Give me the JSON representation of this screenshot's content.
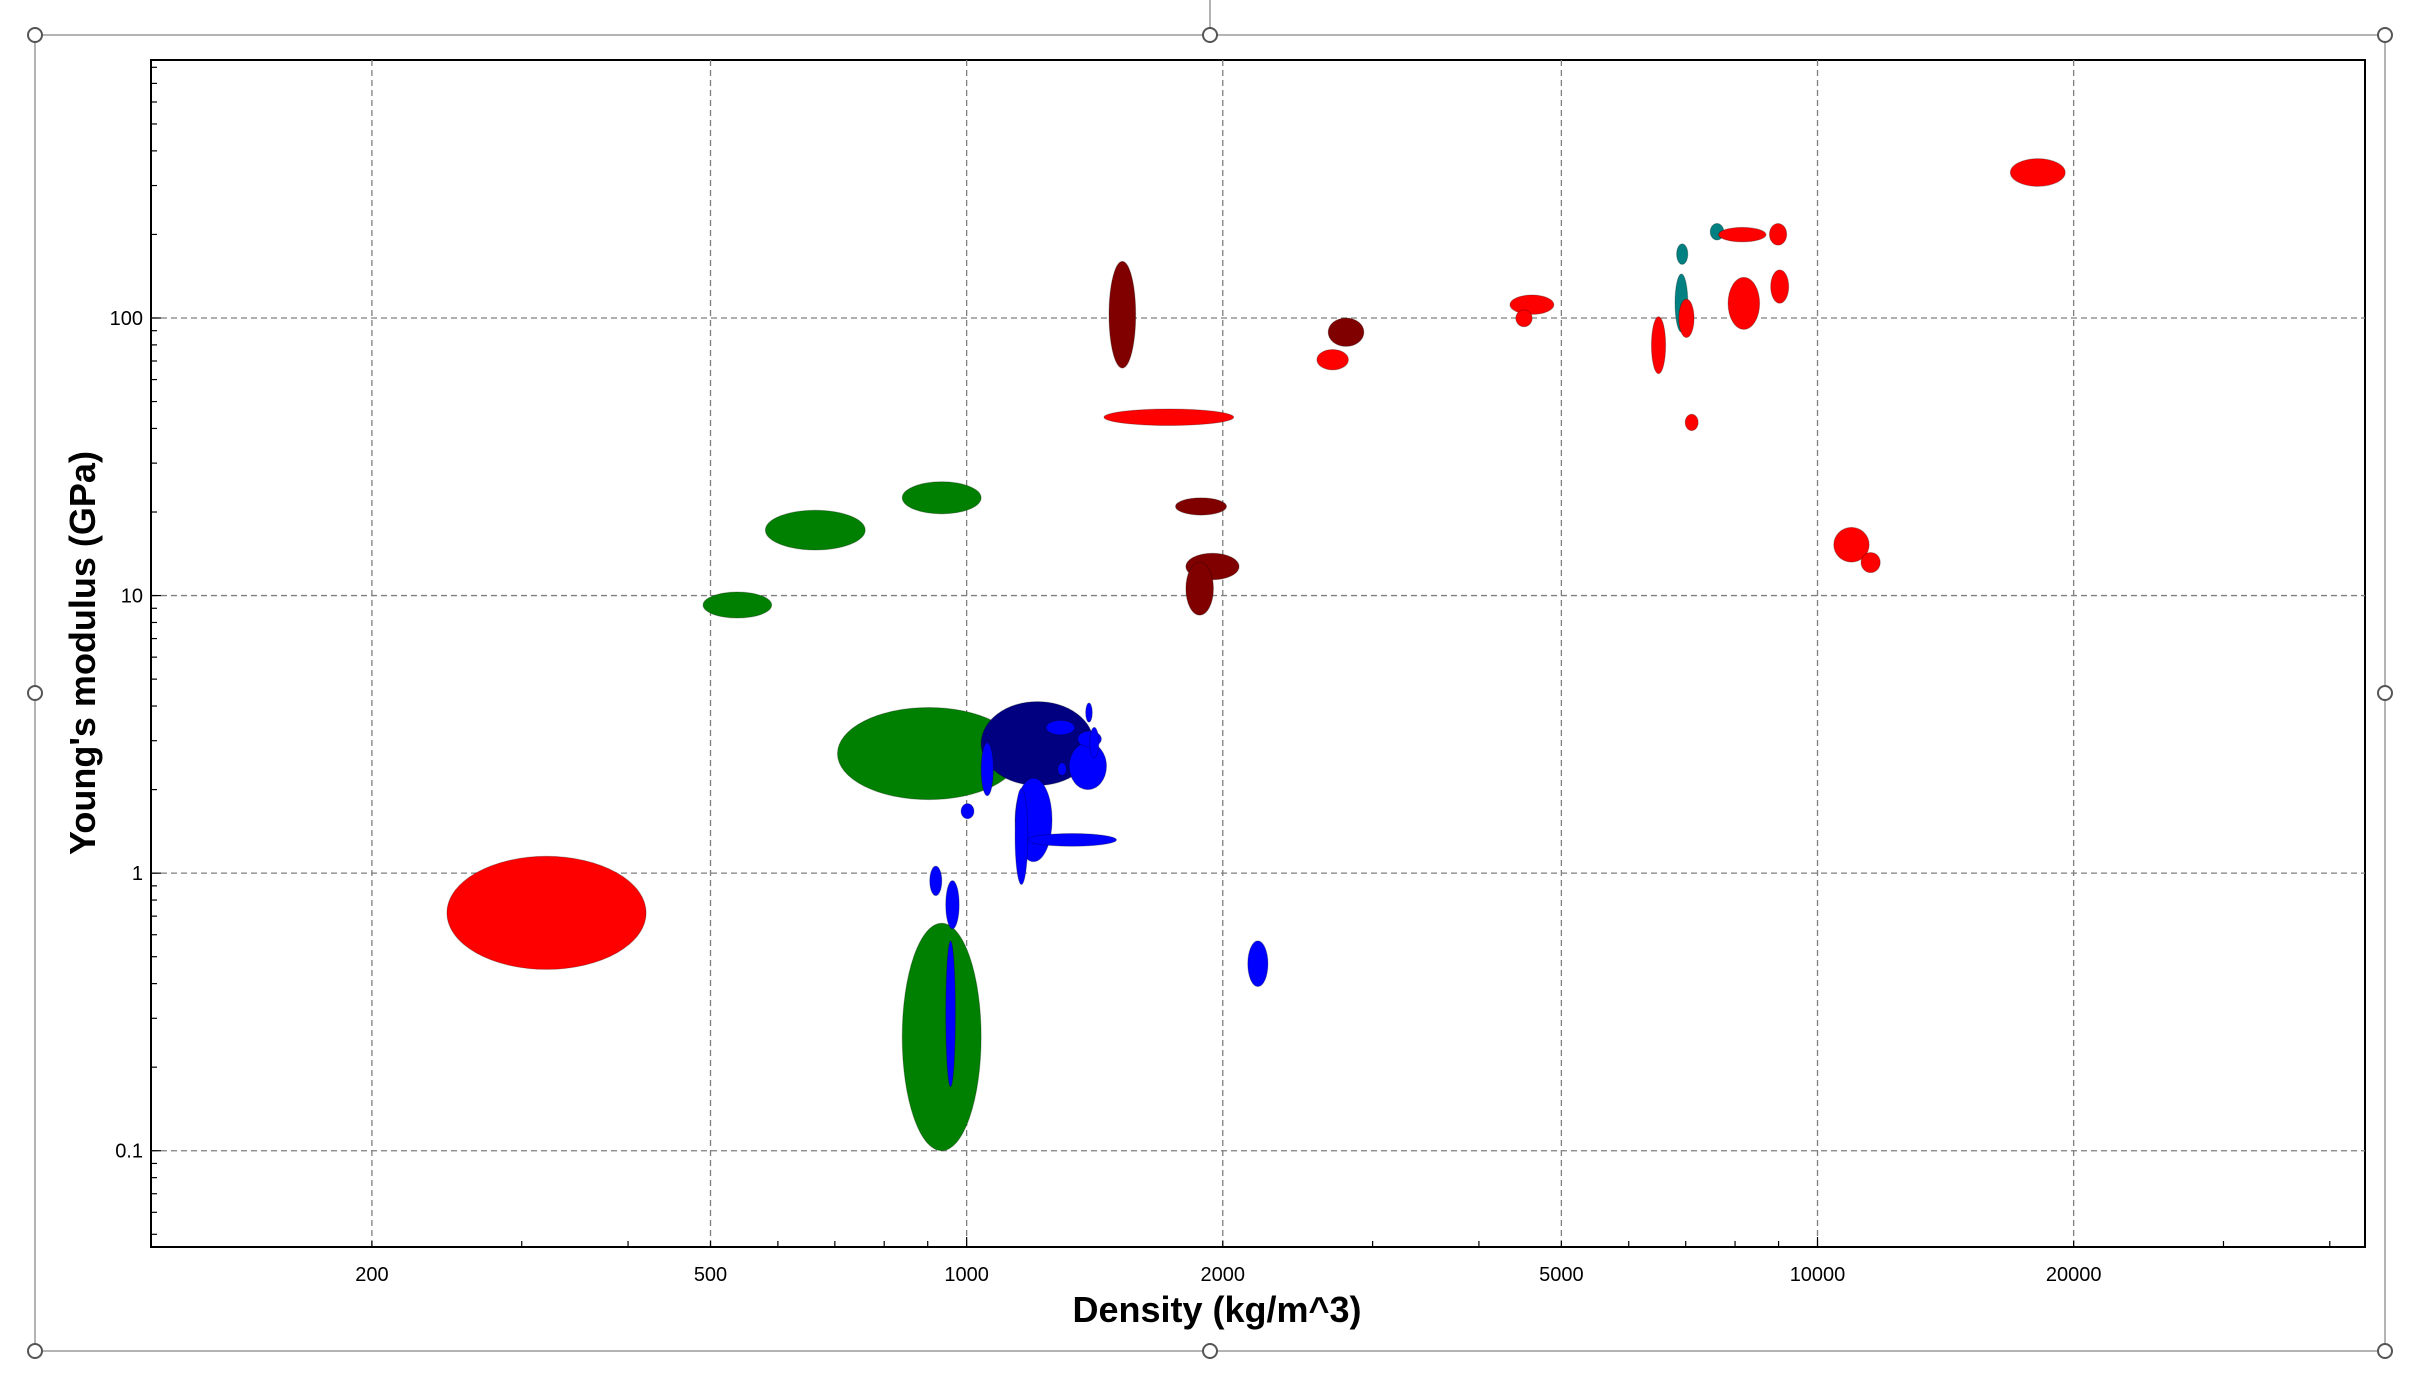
{
  "colors": {
    "red": "#ff0000",
    "darkred": "#800000",
    "green": "#008000",
    "navy": "#000080",
    "blue": "#0000ff",
    "teal": "#008080"
  },
  "chart_data": {
    "type": "scatter",
    "title": "",
    "xlabel": "Density (kg/m^3)",
    "ylabel": "Young's modulus (GPa)",
    "xscale": "log",
    "yscale": "log",
    "xlim": [
      110,
      44000
    ],
    "ylim": [
      0.045,
      850
    ],
    "grid": true,
    "x_ticks": [
      {
        "value": 200,
        "label": "200"
      },
      {
        "value": 500,
        "label": "500"
      },
      {
        "value": 1000,
        "label": "1000"
      },
      {
        "value": 2000,
        "label": "2000"
      },
      {
        "value": 5000,
        "label": "5000"
      },
      {
        "value": 10000,
        "label": "10000"
      },
      {
        "value": 20000,
        "label": "20000"
      }
    ],
    "y_ticks": [
      {
        "value": 0.1,
        "label": "0.1"
      },
      {
        "value": 1,
        "label": "1"
      },
      {
        "value": 10,
        "label": "10"
      },
      {
        "value": 100,
        "label": "100"
      }
    ],
    "regions": [
      {
        "color": "red",
        "x": [
          245,
          420
        ],
        "y": [
          0.45,
          1.15
        ]
      },
      {
        "color": "green",
        "x": [
          490,
          590
        ],
        "y": [
          8.3,
          10.3
        ]
      },
      {
        "color": "green",
        "x": [
          580,
          760
        ],
        "y": [
          14.6,
          20.3
        ]
      },
      {
        "color": "green",
        "x": [
          840,
          1040
        ],
        "y": [
          19.7,
          25.7
        ]
      },
      {
        "color": "green",
        "x": [
          705,
          1155
        ],
        "y": [
          1.84,
          3.95
        ]
      },
      {
        "color": "green",
        "x": [
          840,
          1040
        ],
        "y": [
          0.1,
          0.66
        ]
      },
      {
        "color": "navy",
        "x": [
          1040,
          1410
        ],
        "y": [
          2.07,
          4.15
        ]
      },
      {
        "color": "blue",
        "x": [
          1240,
          1340
        ],
        "y": [
          3.15,
          3.55
        ]
      },
      {
        "color": "blue",
        "x": [
          1380,
          1405
        ],
        "y": [
          3.5,
          4.1
        ]
      },
      {
        "color": "blue",
        "x": [
          1320,
          1460
        ],
        "y": [
          2.0,
          2.95
        ]
      },
      {
        "color": "blue",
        "x": [
          1350,
          1440
        ],
        "y": [
          2.85,
          3.25
        ]
      },
      {
        "color": "blue",
        "x": [
          1395,
          1430
        ],
        "y": [
          2.6,
          3.35
        ]
      },
      {
        "color": "blue",
        "x": [
          1280,
          1310
        ],
        "y": [
          2.25,
          2.5
        ]
      },
      {
        "color": "blue",
        "x": [
          1040,
          1075
        ],
        "y": [
          1.9,
          2.95
        ]
      },
      {
        "color": "blue",
        "x": [
          1140,
          1260
        ],
        "y": [
          1.1,
          2.2
        ]
      },
      {
        "color": "blue",
        "x": [
          1140,
          1180
        ],
        "y": [
          0.91,
          2.02
        ]
      },
      {
        "color": "blue",
        "x": [
          1180,
          1500
        ],
        "y": [
          1.25,
          1.39
        ]
      },
      {
        "color": "blue",
        "x": [
          985,
          1020
        ],
        "y": [
          1.57,
          1.78
        ]
      },
      {
        "color": "blue",
        "x": [
          905,
          935
        ],
        "y": [
          0.83,
          1.06
        ]
      },
      {
        "color": "blue",
        "x": [
          945,
          980
        ],
        "y": [
          0.63,
          0.94
        ]
      },
      {
        "color": "blue",
        "x": [
          945,
          970
        ],
        "y": [
          0.17,
          0.57
        ]
      },
      {
        "color": "blue",
        "x": [
          2140,
          2260
        ],
        "y": [
          0.39,
          0.57
        ]
      },
      {
        "color": "darkred",
        "x": [
          1470,
          1580
        ],
        "y": [
          66,
          160
        ]
      },
      {
        "color": "red",
        "x": [
          1450,
          2060
        ],
        "y": [
          41,
          47
        ]
      },
      {
        "color": "darkred",
        "x": [
          1760,
          2020
        ],
        "y": [
          19.5,
          22.5
        ]
      },
      {
        "color": "darkred",
        "x": [
          1810,
          2090
        ],
        "y": [
          11.4,
          14.2
        ]
      },
      {
        "color": "darkred",
        "x": [
          1810,
          1950
        ],
        "y": [
          8.5,
          13.2
        ]
      },
      {
        "color": "darkred",
        "x": [
          2660,
          2930
        ],
        "y": [
          79,
          100
        ]
      },
      {
        "color": "red",
        "x": [
          2580,
          2810
        ],
        "y": [
          65,
          77
        ]
      },
      {
        "color": "red",
        "x": [
          4350,
          4900
        ],
        "y": [
          103,
          121
        ]
      },
      {
        "color": "red",
        "x": [
          4420,
          4620
        ],
        "y": [
          93,
          107
        ]
      },
      {
        "color": "red",
        "x": [
          6380,
          6630
        ],
        "y": [
          63,
          101
        ]
      },
      {
        "color": "teal",
        "x": [
          6800,
          7040
        ],
        "y": [
          89,
          144
        ]
      },
      {
        "color": "teal",
        "x": [
          6830,
          7040
        ],
        "y": [
          156,
          185
        ]
      },
      {
        "color": "teal",
        "x": [
          7480,
          7760
        ],
        "y": [
          191,
          219
        ]
      },
      {
        "color": "red",
        "x": [
          7650,
          8700
        ],
        "y": [
          188,
          212
        ]
      },
      {
        "color": "red",
        "x": [
          8780,
          9200
        ],
        "y": [
          183,
          219
        ]
      },
      {
        "color": "red",
        "x": [
          6870,
          7160
        ],
        "y": [
          85,
          117
        ]
      },
      {
        "color": "red",
        "x": [
          6990,
          7240
        ],
        "y": [
          39.3,
          45
        ]
      },
      {
        "color": "red",
        "x": [
          7850,
          8550
        ],
        "y": [
          91,
          140
        ]
      },
      {
        "color": "red",
        "x": [
          8810,
          9250
        ],
        "y": [
          113,
          149
        ]
      },
      {
        "color": "red",
        "x": [
          10450,
          11500
        ],
        "y": [
          13.2,
          17.6
        ]
      },
      {
        "color": "red",
        "x": [
          11250,
          11850
        ],
        "y": [
          12.1,
          14.3
        ]
      },
      {
        "color": "red",
        "x": [
          16850,
          19550
        ],
        "y": [
          298,
          375
        ]
      }
    ]
  }
}
